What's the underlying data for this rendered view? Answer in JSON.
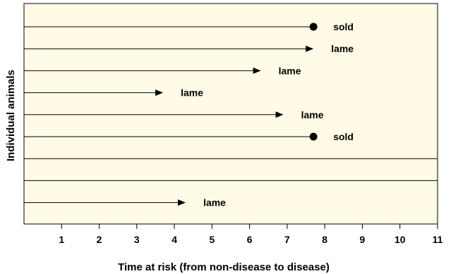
{
  "chart_data": {
    "type": "timeline",
    "xlabel": "Time at risk (from non-disease to disease)",
    "ylabel": "Individual animals",
    "xlim": [
      0,
      11
    ],
    "x_ticks": [
      1,
      2,
      3,
      4,
      5,
      6,
      7,
      8,
      9,
      10,
      11
    ],
    "background": "#fffbe6",
    "animals": [
      {
        "end": 7.7,
        "marker": "dot",
        "label": "sold"
      },
      {
        "end": 7.7,
        "marker": "arrow",
        "label": "lame"
      },
      {
        "end": 6.3,
        "marker": "arrow",
        "label": "lame"
      },
      {
        "end": 3.7,
        "marker": "arrow",
        "label": "lame"
      },
      {
        "end": 6.9,
        "marker": "arrow",
        "label": "lame"
      },
      {
        "end": 7.7,
        "marker": "dot",
        "label": "sold"
      },
      {
        "end": 11,
        "marker": "none",
        "label": ""
      },
      {
        "end": 11,
        "marker": "none",
        "label": ""
      },
      {
        "end": 4.3,
        "marker": "arrow",
        "label": "lame"
      }
    ]
  }
}
